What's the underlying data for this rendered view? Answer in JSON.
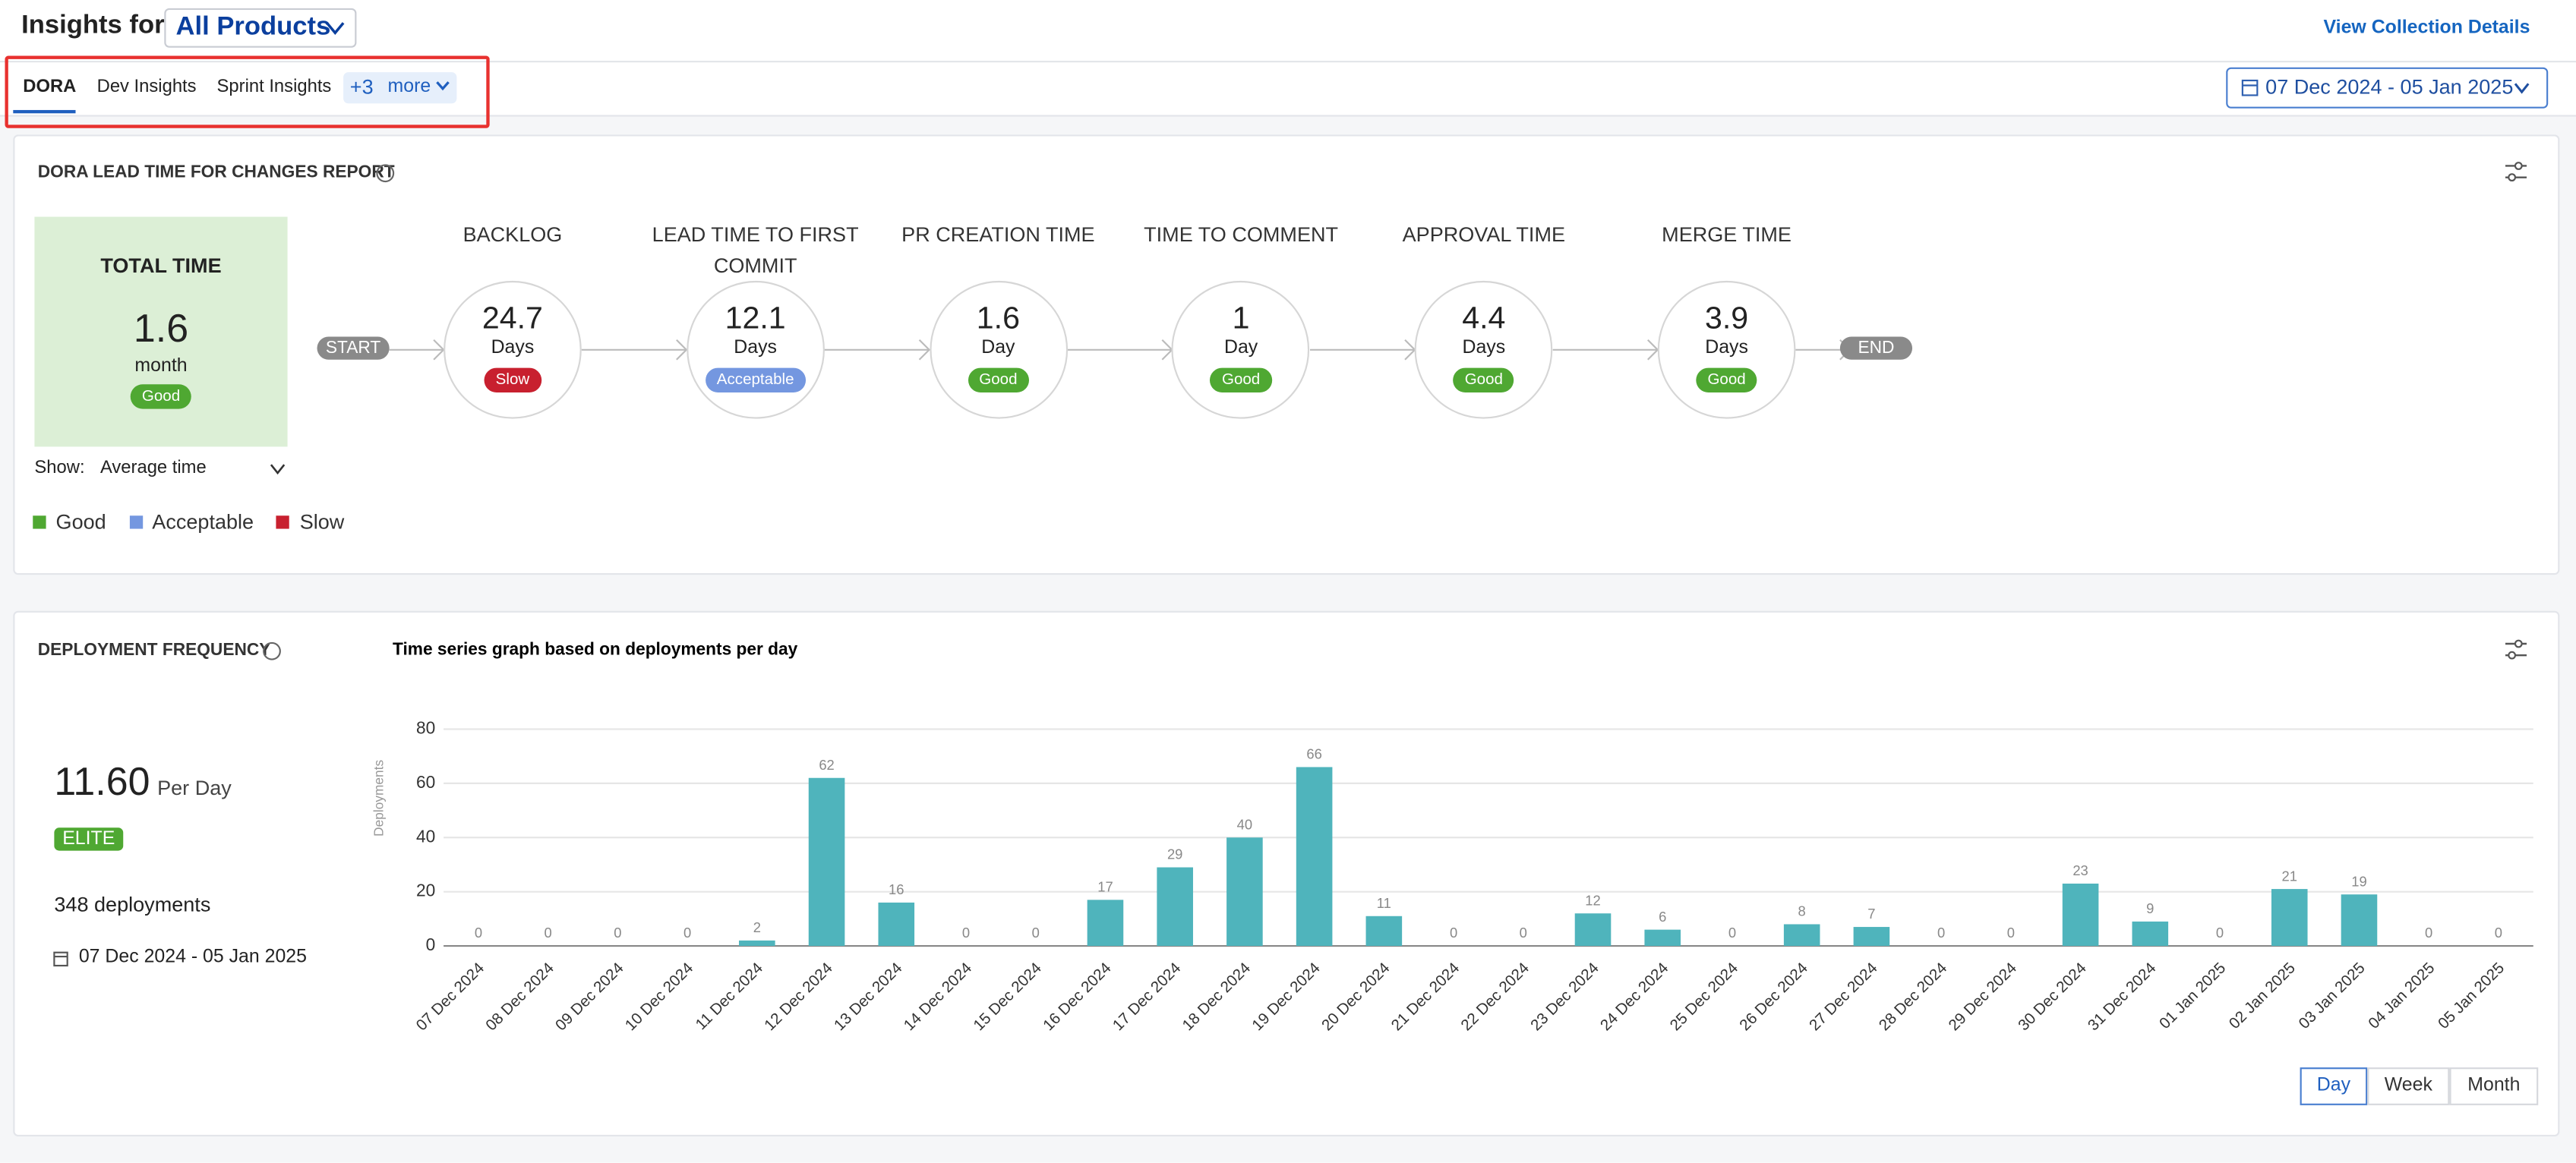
{
  "header": {
    "title": "Insights for",
    "product": "All Products",
    "link": "View Collection Details"
  },
  "tabs": {
    "items": [
      "DORA",
      "Dev Insights",
      "Sprint Insights"
    ],
    "more_count": "+3",
    "more_label": "more",
    "active_index": 0
  },
  "date_range": {
    "label": "07 Dec 2024 - 05 Jan 2025"
  },
  "lead_time": {
    "title": "DORA LEAD TIME FOR CHANGES REPORT",
    "total": {
      "title": "TOTAL TIME",
      "value": "1.6",
      "unit": "month",
      "status": "Good"
    },
    "show_label": "Show:",
    "show_value": "Average time",
    "start": "START",
    "end": "END",
    "stages": [
      {
        "title": "BACKLOG",
        "value": "24.7",
        "unit": "Days",
        "status": "Slow"
      },
      {
        "title": "LEAD TIME TO FIRST COMMIT",
        "value": "12.1",
        "unit": "Days",
        "status": "Acceptable"
      },
      {
        "title": "PR CREATION TIME",
        "value": "1.6",
        "unit": "Day",
        "status": "Good"
      },
      {
        "title": "TIME TO COMMENT",
        "value": "1",
        "unit": "Day",
        "status": "Good"
      },
      {
        "title": "APPROVAL TIME",
        "value": "4.4",
        "unit": "Days",
        "status": "Good"
      },
      {
        "title": "MERGE TIME",
        "value": "3.9",
        "unit": "Days",
        "status": "Good"
      }
    ],
    "legend": [
      {
        "name": "Good",
        "color": "#4fa832"
      },
      {
        "name": "Acceptable",
        "color": "#7497e0"
      },
      {
        "name": "Slow",
        "color": "#c8202f"
      }
    ]
  },
  "deployment": {
    "title": "DEPLOYMENT FREQUENCY",
    "rate": "11.60",
    "rate_unit": "Per Day",
    "grade": "ELITE",
    "count_text": "348 deployments",
    "date_range": "07 Dec 2024 - 05 Jan 2025",
    "periods": [
      "Day",
      "Week",
      "Month"
    ],
    "selected_period": 0
  },
  "chart_data": {
    "type": "bar",
    "subtitle": "Time series graph based on deployments per day",
    "y_label": "Deployments",
    "categories": [
      "07 Dec 2024",
      "08 Dec 2024",
      "09 Dec 2024",
      "10 Dec 2024",
      "11 Dec 2024",
      "12 Dec 2024",
      "13 Dec 2024",
      "14 Dec 2024",
      "15 Dec 2024",
      "16 Dec 2024",
      "17 Dec 2024",
      "18 Dec 2024",
      "19 Dec 2024",
      "20 Dec 2024",
      "21 Dec 2024",
      "22 Dec 2024",
      "23 Dec 2024",
      "24 Dec 2024",
      "25 Dec 2024",
      "26 Dec 2024",
      "27 Dec 2024",
      "28 Dec 2024",
      "29 Dec 2024",
      "30 Dec 2024",
      "31 Dec 2024",
      "01 Jan 2025",
      "02 Jan 2025",
      "03 Jan 2025",
      "04 Jan 2025",
      "05 Jan 2025"
    ],
    "values": [
      0,
      0,
      0,
      0,
      2,
      62,
      16,
      0,
      0,
      17,
      29,
      40,
      66,
      11,
      0,
      0,
      12,
      6,
      0,
      8,
      7,
      0,
      0,
      23,
      9,
      0,
      21,
      19,
      0,
      0
    ],
    "color": "#4fb4bc",
    "ylim": [
      0,
      80
    ],
    "yticks": [
      0,
      20,
      40,
      60,
      80
    ],
    "grid": true
  }
}
